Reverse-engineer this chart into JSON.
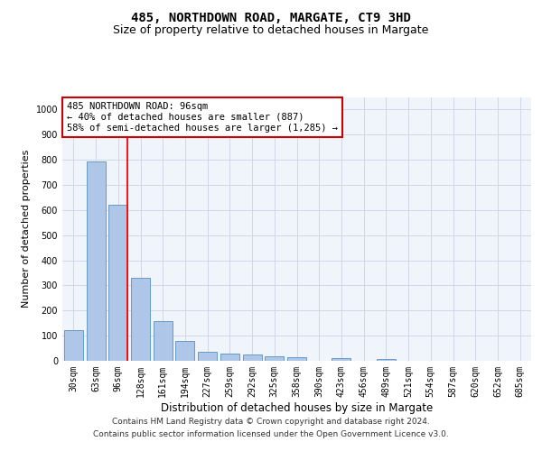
{
  "title": "485, NORTHDOWN ROAD, MARGATE, CT9 3HD",
  "subtitle": "Size of property relative to detached houses in Margate",
  "xlabel": "Distribution of detached houses by size in Margate",
  "ylabel": "Number of detached properties",
  "categories": [
    "30sqm",
    "63sqm",
    "96sqm",
    "128sqm",
    "161sqm",
    "194sqm",
    "227sqm",
    "259sqm",
    "292sqm",
    "325sqm",
    "358sqm",
    "390sqm",
    "423sqm",
    "456sqm",
    "489sqm",
    "521sqm",
    "554sqm",
    "587sqm",
    "620sqm",
    "652sqm",
    "685sqm"
  ],
  "values": [
    122,
    795,
    620,
    330,
    158,
    80,
    37,
    27,
    25,
    17,
    14,
    0,
    10,
    0,
    7,
    0,
    0,
    0,
    0,
    0,
    0
  ],
  "bar_color": "#aec6e8",
  "bar_edge_color": "#5a8fc0",
  "red_line_index": 2,
  "annotation_text": "485 NORTHDOWN ROAD: 96sqm\n← 40% of detached houses are smaller (887)\n58% of semi-detached houses are larger (1,285) →",
  "annotation_box_color": "#ffffff",
  "annotation_box_edge_color": "#cc0000",
  "grid_color": "#d0d8e8",
  "background_color": "#f0f4fb",
  "ylim": [
    0,
    1050
  ],
  "yticks": [
    0,
    100,
    200,
    300,
    400,
    500,
    600,
    700,
    800,
    900,
    1000
  ],
  "footer_line1": "Contains HM Land Registry data © Crown copyright and database right 2024.",
  "footer_line2": "Contains public sector information licensed under the Open Government Licence v3.0.",
  "title_fontsize": 10,
  "subtitle_fontsize": 9,
  "tick_fontsize": 7,
  "ylabel_fontsize": 8,
  "xlabel_fontsize": 8.5
}
